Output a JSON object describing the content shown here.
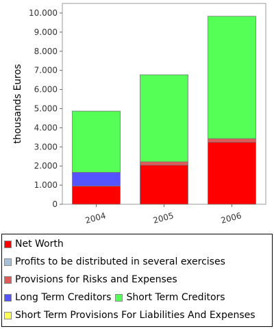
{
  "chart_data": {
    "type": "bar",
    "stacked": true,
    "title": "",
    "xlabel": "",
    "ylabel": "thousands Euros",
    "ylim": [
      0,
      10500
    ],
    "yticks": [
      0,
      1000,
      2000,
      3000,
      4000,
      5000,
      6000,
      7000,
      8000,
      9000,
      10000
    ],
    "ytick_labels": [
      "0",
      "1.000",
      "2.000",
      "3.000",
      "4.000",
      "5.000",
      "6.000",
      "7.000",
      "8.000",
      "9.000",
      "10.000"
    ],
    "categories": [
      "2004",
      "2005",
      "2006"
    ],
    "series": [
      {
        "name": "Net Worth",
        "color": "#ff0000",
        "values": [
          950,
          2050,
          3250
        ]
      },
      {
        "name": "Profits to be distributed in several exercises",
        "color": "#a8bfd8",
        "values": [
          0,
          0,
          0
        ]
      },
      {
        "name": "Provisions for Risks and Expenses",
        "color": "#e05a5a",
        "values": [
          0,
          170,
          180
        ]
      },
      {
        "name": "Long Term Creditors",
        "color": "#5555ff",
        "values": [
          720,
          0,
          0
        ]
      },
      {
        "name": "Short Term Creditors",
        "color": "#55ff55",
        "values": [
          3200,
          4550,
          6400
        ]
      },
      {
        "name": "Short Term Provisions For Liabilities And Expenses",
        "color": "#ffff55",
        "values": [
          0,
          0,
          0
        ]
      }
    ],
    "grid": false,
    "legend_position": "bottom"
  },
  "legend": {
    "rows": [
      [
        0
      ],
      [
        1
      ],
      [
        2
      ],
      [
        3,
        4
      ],
      [
        5
      ]
    ]
  }
}
